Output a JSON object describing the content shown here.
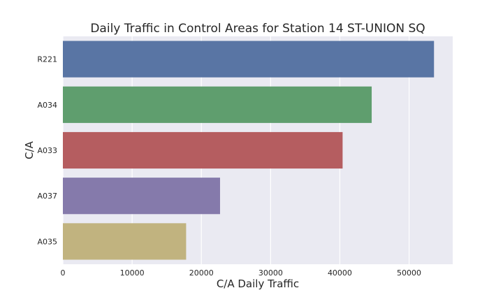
{
  "chart_data": {
    "type": "bar",
    "orientation": "horizontal",
    "title": "Daily Traffic in Control Areas for Station 14 ST-UNION SQ",
    "xlabel": "C/A Daily Traffic",
    "ylabel": "C/A",
    "categories": [
      "R221",
      "A034",
      "A033",
      "A037",
      "A035"
    ],
    "values": [
      53600,
      44600,
      40400,
      22700,
      17800
    ],
    "colors": [
      "#5975a4",
      "#5f9e6e",
      "#b55d60",
      "#857aab",
      "#c1b37f"
    ],
    "xlim": [
      0,
      56300
    ],
    "xticks": [
      0,
      10000,
      20000,
      30000,
      40000,
      50000
    ],
    "xtick_labels": [
      "0",
      "10000",
      "20000",
      "30000",
      "40000",
      "50000"
    ],
    "grid": true,
    "background": "#eaeaf2"
  }
}
